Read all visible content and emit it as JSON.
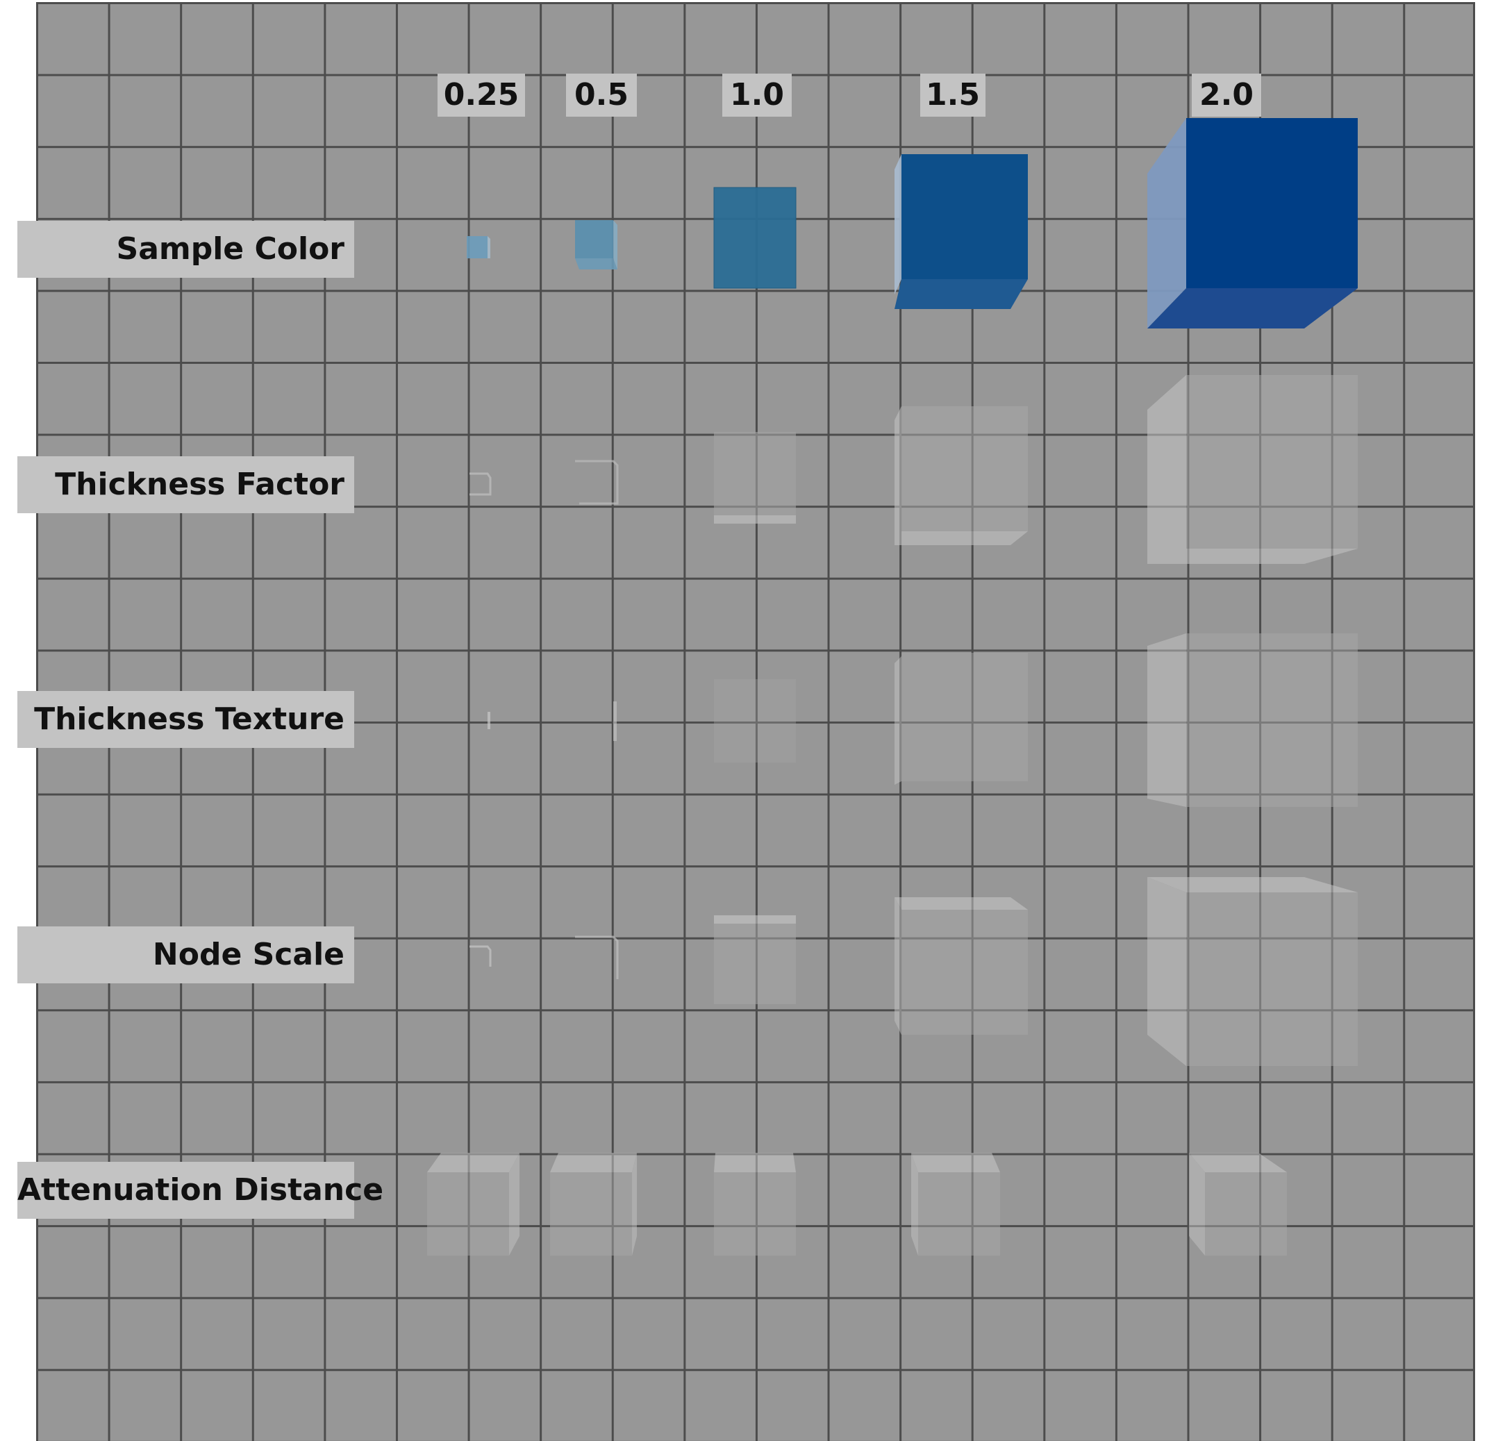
{
  "column_labels": [
    "0.25",
    "0.5",
    "1.0",
    "1.5",
    "2.0"
  ],
  "row_labels": [
    "Sample Color",
    "Thickness Factor",
    "Thickness Texture",
    "Node Scale",
    "Attenuation Distance"
  ],
  "colors": {
    "background": "#979797",
    "grid_line": "#4c4c4c",
    "label_box": "#c3c3c3",
    "label_text": "#111111",
    "sample_color_small": "#5b8fae",
    "sample_color_mid": "#2a6d95",
    "sample_color_large": "#0d4f8a",
    "sample_color_xl": "#003e86",
    "glass": "#b8b8b8"
  }
}
